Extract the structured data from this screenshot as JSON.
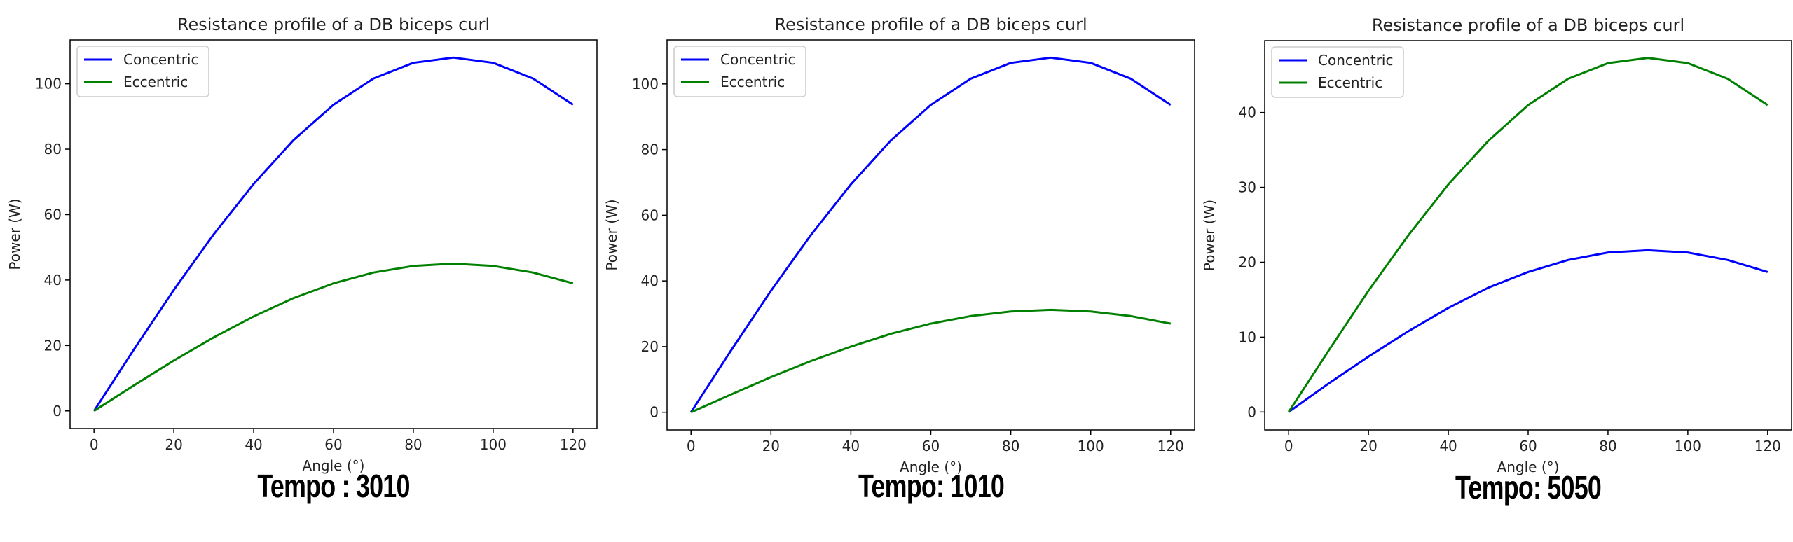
{
  "chart_data": [
    {
      "type": "line",
      "title": "Resistance profile of a DB biceps curl",
      "xlabel": "Angle (°)",
      "ylabel": "Power (W)",
      "xlim": [
        -6,
        126
      ],
      "ylim": [
        -5.4,
        113.4
      ],
      "xticks": [
        0,
        20,
        40,
        60,
        80,
        100,
        120
      ],
      "yticks": [
        0,
        20,
        40,
        60,
        80,
        100
      ],
      "grid": false,
      "legend_position": "upper-left",
      "series": [
        {
          "name": "Concentric",
          "color": "#0000ff",
          "x": [
            0,
            10,
            20,
            30,
            40,
            50,
            60,
            70,
            80,
            90,
            100,
            110,
            120
          ],
          "y": [
            0,
            18.8,
            37.0,
            54.0,
            69.4,
            82.8,
            93.6,
            101.6,
            106.4,
            108.0,
            106.4,
            101.6,
            93.6
          ]
        },
        {
          "name": "Eccentric",
          "color": "#008000",
          "x": [
            0,
            10,
            20,
            30,
            40,
            50,
            60,
            70,
            80,
            90,
            100,
            110,
            120
          ],
          "y": [
            0,
            7.8,
            15.4,
            22.5,
            28.9,
            34.5,
            39.0,
            42.3,
            44.3,
            45.0,
            44.3,
            42.3,
            39.0
          ]
        }
      ],
      "caption": "Tempo : 3010"
    },
    {
      "type": "line",
      "title": "Resistance profile of a DB biceps curl",
      "xlabel": "Angle (°)",
      "ylabel": "Power (W)",
      "xlim": [
        -6,
        126
      ],
      "ylim": [
        -5.4,
        113.4
      ],
      "xticks": [
        0,
        20,
        40,
        60,
        80,
        100,
        120
      ],
      "yticks": [
        0,
        20,
        40,
        60,
        80,
        100
      ],
      "grid": false,
      "legend_position": "upper-left",
      "series": [
        {
          "name": "Concentric",
          "color": "#0000ff",
          "x": [
            0,
            10,
            20,
            30,
            40,
            50,
            60,
            70,
            80,
            90,
            100,
            110,
            120
          ],
          "y": [
            0,
            18.8,
            37.0,
            54.0,
            69.4,
            82.8,
            93.6,
            101.6,
            106.4,
            108.0,
            106.4,
            101.6,
            93.6
          ]
        },
        {
          "name": "Eccentric",
          "color": "#008000",
          "x": [
            0,
            10,
            20,
            30,
            40,
            50,
            60,
            70,
            80,
            90,
            100,
            110,
            120
          ],
          "y": [
            0,
            5.4,
            10.7,
            15.6,
            20.0,
            23.9,
            27.0,
            29.3,
            30.7,
            31.2,
            30.7,
            29.3,
            27.0
          ]
        }
      ],
      "caption": "Tempo: 1010"
    },
    {
      "type": "line",
      "title": "Resistance profile of a DB biceps curl",
      "xlabel": "Angle (°)",
      "ylabel": "Power (W)",
      "xlim": [
        -6,
        126
      ],
      "ylim": [
        -2.4,
        49.6
      ],
      "xticks": [
        0,
        20,
        40,
        60,
        80,
        100,
        120
      ],
      "yticks": [
        0,
        10,
        20,
        30,
        40
      ],
      "grid": false,
      "legend_position": "upper-left",
      "series": [
        {
          "name": "Concentric",
          "color": "#0000ff",
          "x": [
            0,
            10,
            20,
            30,
            40,
            50,
            60,
            70,
            80,
            90,
            100,
            110,
            120
          ],
          "y": [
            0,
            3.8,
            7.4,
            10.8,
            13.9,
            16.6,
            18.7,
            20.3,
            21.3,
            21.6,
            21.3,
            20.3,
            18.7
          ]
        },
        {
          "name": "Eccentric",
          "color": "#008000",
          "x": [
            0,
            10,
            20,
            30,
            40,
            50,
            60,
            70,
            80,
            90,
            100,
            110,
            120
          ],
          "y": [
            0,
            8.2,
            16.2,
            23.6,
            30.4,
            36.2,
            41.0,
            44.5,
            46.6,
            47.3,
            46.6,
            44.5,
            41.0
          ]
        }
      ],
      "caption": "Tempo: 5050"
    }
  ]
}
